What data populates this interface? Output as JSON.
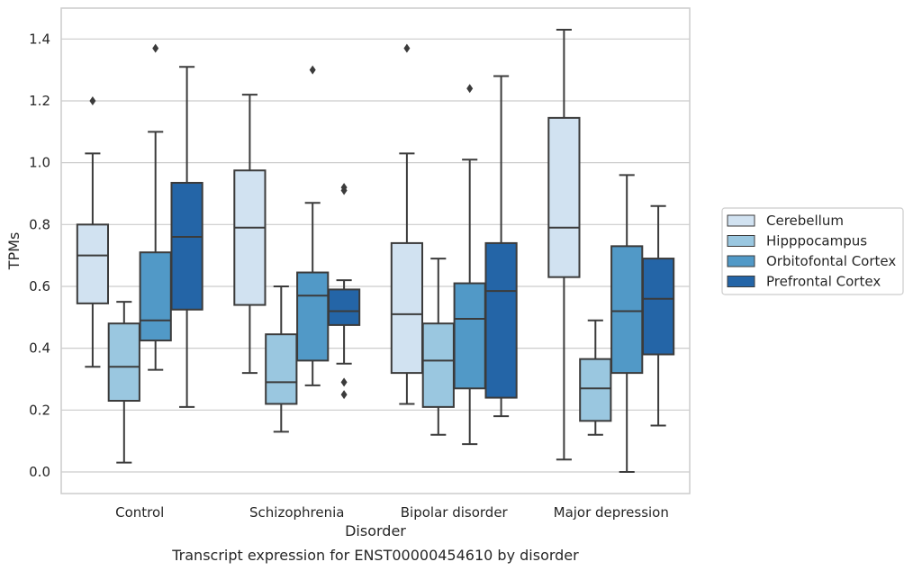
{
  "chart_data": {
    "type": "box",
    "xlabel": "Disorder",
    "ylabel": "TPMs",
    "caption": "Transcript expression for ENST00000454610 by disorder",
    "ylim": [
      -0.07,
      1.5
    ],
    "yticks": [
      "0.0",
      "0.2",
      "0.4",
      "0.6",
      "0.8",
      "1.0",
      "1.2",
      "1.4"
    ],
    "grid": "horizontal",
    "legend_position": "right",
    "categories": [
      "Control",
      "Schizophrenia",
      "Bipolar disorder",
      "Major depression"
    ],
    "series": [
      {
        "name": "Cerebellum",
        "color": "#d1e2f1",
        "boxes": [
          {
            "whislo": 0.34,
            "q1": 0.545,
            "med": 0.7,
            "q3": 0.8,
            "whishi": 1.03,
            "fliers": [
              1.2
            ]
          },
          {
            "whislo": 0.32,
            "q1": 0.54,
            "med": 0.79,
            "q3": 0.975,
            "whishi": 1.22,
            "fliers": []
          },
          {
            "whislo": 0.22,
            "q1": 0.32,
            "med": 0.51,
            "q3": 0.74,
            "whishi": 1.03,
            "fliers": [
              1.37
            ]
          },
          {
            "whislo": 0.04,
            "q1": 0.63,
            "med": 0.79,
            "q3": 1.145,
            "whishi": 1.43,
            "fliers": []
          }
        ]
      },
      {
        "name": "Hipppocampus",
        "color": "#9ac7e0",
        "boxes": [
          {
            "whislo": 0.03,
            "q1": 0.23,
            "med": 0.34,
            "q3": 0.48,
            "whishi": 0.55,
            "fliers": []
          },
          {
            "whislo": 0.13,
            "q1": 0.22,
            "med": 0.29,
            "q3": 0.445,
            "whishi": 0.6,
            "fliers": []
          },
          {
            "whislo": 0.12,
            "q1": 0.21,
            "med": 0.36,
            "q3": 0.48,
            "whishi": 0.69,
            "fliers": []
          },
          {
            "whislo": 0.12,
            "q1": 0.165,
            "med": 0.27,
            "q3": 0.365,
            "whishi": 0.49,
            "fliers": []
          }
        ]
      },
      {
        "name": "Orbitofontal Cortex",
        "color": "#5199c7",
        "boxes": [
          {
            "whislo": 0.33,
            "q1": 0.425,
            "med": 0.49,
            "q3": 0.71,
            "whishi": 1.1,
            "fliers": [
              1.37
            ]
          },
          {
            "whislo": 0.28,
            "q1": 0.36,
            "med": 0.57,
            "q3": 0.645,
            "whishi": 0.87,
            "fliers": [
              1.3
            ]
          },
          {
            "whislo": 0.09,
            "q1": 0.27,
            "med": 0.495,
            "q3": 0.61,
            "whishi": 1.01,
            "fliers": [
              1.24
            ]
          },
          {
            "whislo": 0.0,
            "q1": 0.32,
            "med": 0.52,
            "q3": 0.73,
            "whishi": 0.96,
            "fliers": []
          }
        ]
      },
      {
        "name": "Prefrontal Cortex",
        "color": "#2465a7",
        "boxes": [
          {
            "whislo": 0.21,
            "q1": 0.525,
            "med": 0.76,
            "q3": 0.935,
            "whishi": 1.31,
            "fliers": []
          },
          {
            "whislo": 0.35,
            "q1": 0.475,
            "med": 0.52,
            "q3": 0.59,
            "whishi": 0.62,
            "fliers": [
              0.91,
              0.92,
              0.29,
              0.25
            ]
          },
          {
            "whislo": 0.18,
            "q1": 0.24,
            "med": 0.585,
            "q3": 0.74,
            "whishi": 1.28,
            "fliers": []
          },
          {
            "whislo": 0.15,
            "q1": 0.38,
            "med": 0.56,
            "q3": 0.69,
            "whishi": 0.86,
            "fliers": []
          }
        ]
      }
    ]
  }
}
